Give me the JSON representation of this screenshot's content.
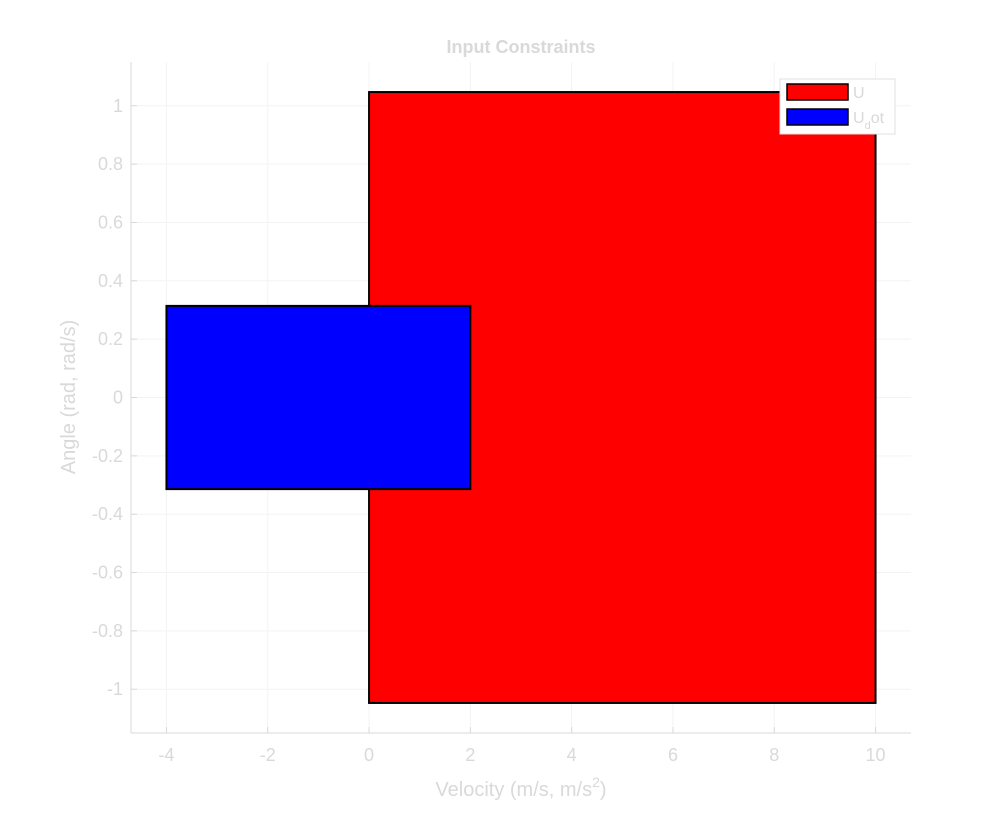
{
  "chart_data": {
    "type": "area",
    "title": "Input Constraints",
    "xlabel": "Velocity (m/s, m/s",
    "xlabel_sup": "2",
    "xlabel_suffix": ")",
    "ylabel": "Angle (rad, rad/s)",
    "xlim": [
      -4.7,
      10.7
    ],
    "ylim": [
      -1.15,
      1.15
    ],
    "x_ticks": [
      -4,
      -2,
      0,
      2,
      4,
      6,
      8,
      10
    ],
    "y_ticks": [
      -1,
      -0.8,
      -0.6,
      -0.4,
      -0.2,
      0,
      0.2,
      0.4,
      0.6,
      0.8,
      1
    ],
    "grid": true,
    "legend_position": "top-right",
    "series": [
      {
        "name": "U",
        "name_sub": "",
        "name_suffix": "",
        "color": "#ff0000",
        "x": [
          0,
          10
        ],
        "y": [
          -1.047,
          1.047
        ]
      },
      {
        "name": "U",
        "name_sub": "d",
        "name_suffix": "ot",
        "color": "#0000ff",
        "x": [
          -4,
          2
        ],
        "y": [
          -0.314,
          0.314
        ]
      }
    ]
  }
}
